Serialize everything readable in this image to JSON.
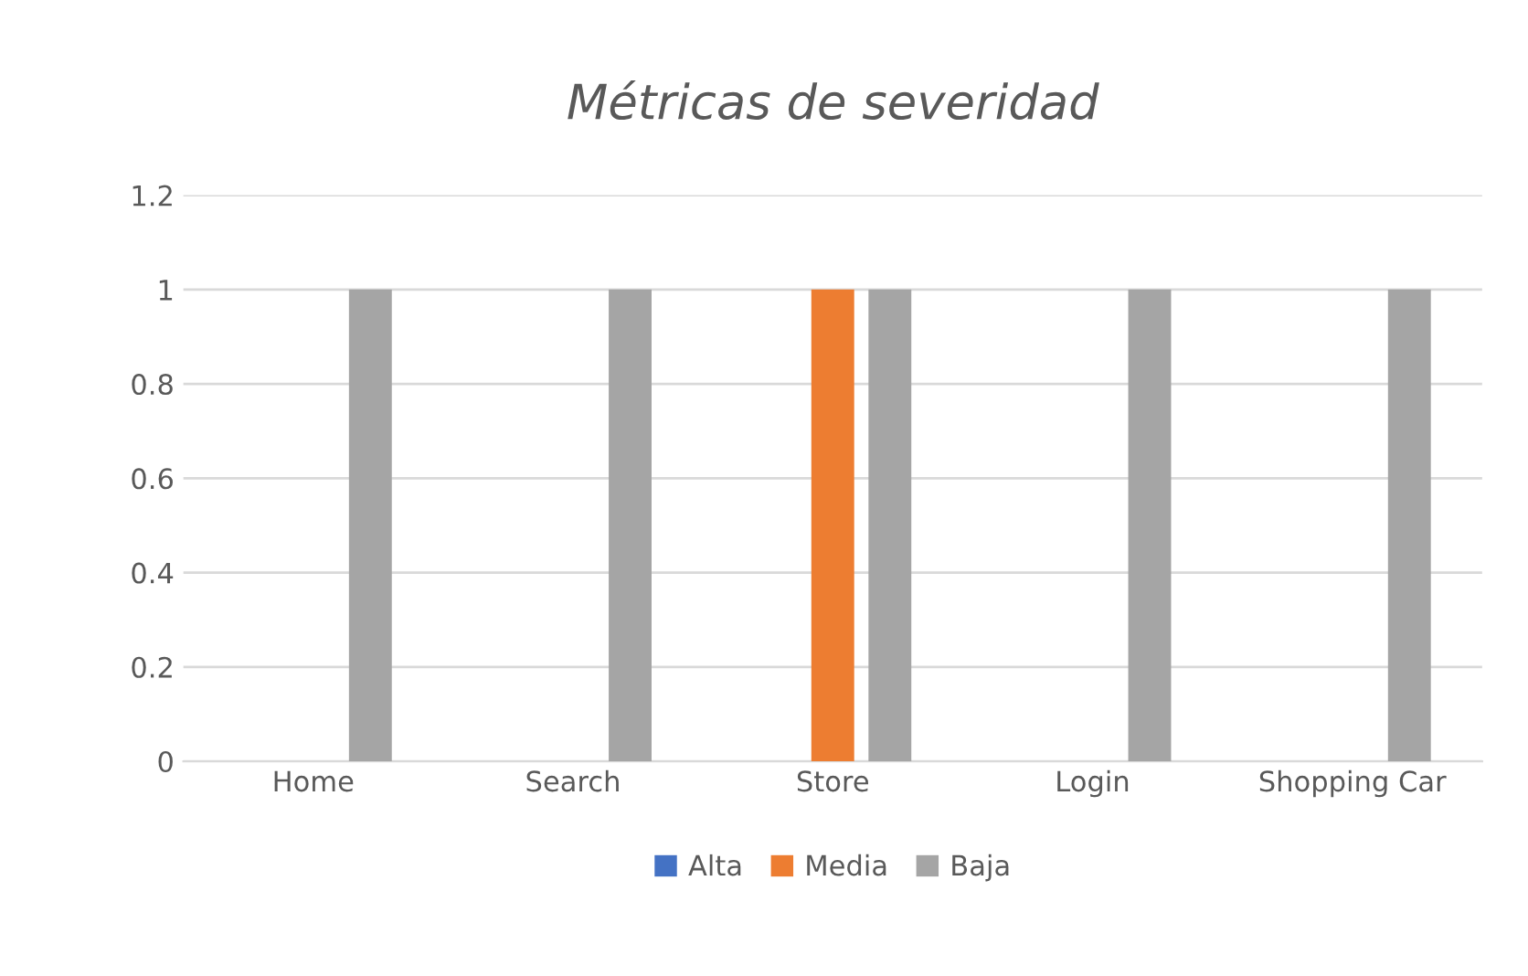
{
  "chart_data": {
    "type": "bar",
    "title": "Métricas de severidad",
    "categories": [
      "Home",
      "Search",
      "Store",
      "Login",
      "Shopping Car"
    ],
    "series": [
      {
        "name": "Alta",
        "color": "#4472c4",
        "values": [
          0,
          0,
          0,
          0,
          0
        ]
      },
      {
        "name": "Media",
        "color": "#ed7d31",
        "values": [
          0,
          0,
          1,
          0,
          0
        ]
      },
      {
        "name": "Baja",
        "color": "#a5a5a5",
        "values": [
          1,
          1,
          1,
          1,
          1
        ]
      }
    ],
    "ylim": [
      0,
      1.2
    ],
    "yticks": [
      0,
      0.2,
      0.4,
      0.6,
      0.8,
      1,
      1.2
    ],
    "grid": "y",
    "legend": "bottom"
  }
}
